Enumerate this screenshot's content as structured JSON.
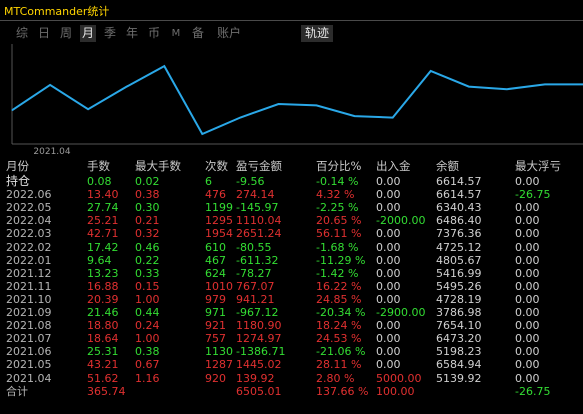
{
  "window": {
    "title": "MTCommander统计"
  },
  "tabs": [
    {
      "label": "综",
      "active": false
    },
    {
      "label": "日",
      "active": false
    },
    {
      "label": "周",
      "active": false
    },
    {
      "label": "月",
      "active": true
    },
    {
      "label": "季",
      "active": false
    },
    {
      "label": "年",
      "active": false
    },
    {
      "label": "币",
      "active": false
    },
    {
      "label": "M",
      "active": false
    },
    {
      "label": "备",
      "active": false
    },
    {
      "label": "账户",
      "active": false
    },
    {
      "label": "轨迹",
      "active": true
    }
  ],
  "chart_data": {
    "type": "line",
    "x": [
      "2021.04",
      "2021.05",
      "2021.06",
      "2021.07",
      "2021.08",
      "2021.09",
      "2021.10",
      "2021.11",
      "2021.12",
      "2022.01",
      "2022.02",
      "2022.03",
      "2022.04",
      "2022.05",
      "2022.06",
      "持仓"
    ],
    "series": [
      {
        "values": [
          5139.92,
          6584.94,
          5198.23,
          6473.2,
          7654.1,
          3786.98,
          4728.19,
          5495.26,
          5416.99,
          4805.67,
          4725.12,
          7376.36,
          6486.4,
          6340.43,
          6614.57,
          6614.57
        ]
      }
    ],
    "tick_labels": [
      "2021.04"
    ],
    "color": "#2aa8e8"
  },
  "table": {
    "headers": [
      "月份",
      "手数",
      "最大手数",
      "次数",
      "盈亏金额",
      "百分比%",
      "出入金",
      "余额",
      "最大浮亏"
    ],
    "rows": [
      {
        "month": "持仓",
        "lots": "0.08",
        "maxLots": "0.02",
        "count": "6",
        "pnl": "-9.56",
        "pct": "-0.14 %",
        "flow": "0.00",
        "balance": "6614.57",
        "maxDD": "0.00",
        "color": "g"
      },
      {
        "month": "2022.06",
        "lots": "13.40",
        "maxLots": "0.38",
        "count": "476",
        "pnl": "274.14",
        "pct": "4.32 %",
        "flow": "0.00",
        "balance": "6614.57",
        "maxDD": "-26.75",
        "color": "r"
      },
      {
        "month": "2022.05",
        "lots": "27.74",
        "maxLots": "0.30",
        "count": "1199",
        "pnl": "-145.97",
        "pct": "-2.25 %",
        "flow": "0.00",
        "balance": "6340.43",
        "maxDD": "0.00",
        "color": "g"
      },
      {
        "month": "2022.04",
        "lots": "25.21",
        "maxLots": "0.21",
        "count": "1295",
        "pnl": "1110.04",
        "pct": "20.65 %",
        "flow": "-2000.00",
        "balance": "6486.40",
        "maxDD": "0.00",
        "color": "r"
      },
      {
        "month": "2022.03",
        "lots": "42.71",
        "maxLots": "0.32",
        "count": "1954",
        "pnl": "2651.24",
        "pct": "56.11 %",
        "flow": "0.00",
        "balance": "7376.36",
        "maxDD": "0.00",
        "color": "r"
      },
      {
        "month": "2022.02",
        "lots": "17.42",
        "maxLots": "0.46",
        "count": "610",
        "pnl": "-80.55",
        "pct": "-1.68 %",
        "flow": "0.00",
        "balance": "4725.12",
        "maxDD": "0.00",
        "color": "g"
      },
      {
        "month": "2022.01",
        "lots": "9.64",
        "maxLots": "0.22",
        "count": "467",
        "pnl": "-611.32",
        "pct": "-11.29 %",
        "flow": "0.00",
        "balance": "4805.67",
        "maxDD": "0.00",
        "color": "g"
      },
      {
        "month": "2021.12",
        "lots": "13.23",
        "maxLots": "0.33",
        "count": "624",
        "pnl": "-78.27",
        "pct": "-1.42 %",
        "flow": "0.00",
        "balance": "5416.99",
        "maxDD": "0.00",
        "color": "g"
      },
      {
        "month": "2021.11",
        "lots": "16.88",
        "maxLots": "0.15",
        "count": "1010",
        "pnl": "767.07",
        "pct": "16.22 %",
        "flow": "0.00",
        "balance": "5495.26",
        "maxDD": "0.00",
        "color": "r"
      },
      {
        "month": "2021.10",
        "lots": "20.39",
        "maxLots": "1.00",
        "count": "979",
        "pnl": "941.21",
        "pct": "24.85 %",
        "flow": "0.00",
        "balance": "4728.19",
        "maxDD": "0.00",
        "color": "r"
      },
      {
        "month": "2021.09",
        "lots": "21.46",
        "maxLots": "0.44",
        "count": "971",
        "pnl": "-967.12",
        "pct": "-20.34 %",
        "flow": "-2900.00",
        "balance": "3786.98",
        "maxDD": "0.00",
        "color": "g"
      },
      {
        "month": "2021.08",
        "lots": "18.80",
        "maxLots": "0.24",
        "count": "921",
        "pnl": "1180.90",
        "pct": "18.24 %",
        "flow": "0.00",
        "balance": "7654.10",
        "maxDD": "0.00",
        "color": "r"
      },
      {
        "month": "2021.07",
        "lots": "18.64",
        "maxLots": "1.00",
        "count": "757",
        "pnl": "1274.97",
        "pct": "24.53 %",
        "flow": "0.00",
        "balance": "6473.20",
        "maxDD": "0.00",
        "color": "r"
      },
      {
        "month": "2021.06",
        "lots": "25.31",
        "maxLots": "0.38",
        "count": "1130",
        "pnl": "-1386.71",
        "pct": "-21.06 %",
        "flow": "0.00",
        "balance": "5198.23",
        "maxDD": "0.00",
        "color": "g"
      },
      {
        "month": "2021.05",
        "lots": "43.21",
        "maxLots": "0.67",
        "count": "1287",
        "pnl": "1445.02",
        "pct": "28.11 %",
        "flow": "0.00",
        "balance": "6584.94",
        "maxDD": "0.00",
        "color": "r"
      },
      {
        "month": "2021.04",
        "lots": "51.62",
        "maxLots": "1.16",
        "count": "920",
        "pnl": "139.92",
        "pct": "2.80 %",
        "flow": "5000.00",
        "balance": "5139.92",
        "maxDD": "0.00",
        "color": "r"
      },
      {
        "month": "合计",
        "lots": "365.74",
        "maxLots": "",
        "count": "",
        "pnl": "6505.01",
        "pct": "137.66 %",
        "flow": "100.00",
        "balance": "",
        "maxDD": "-26.75",
        "color": "r"
      }
    ]
  }
}
